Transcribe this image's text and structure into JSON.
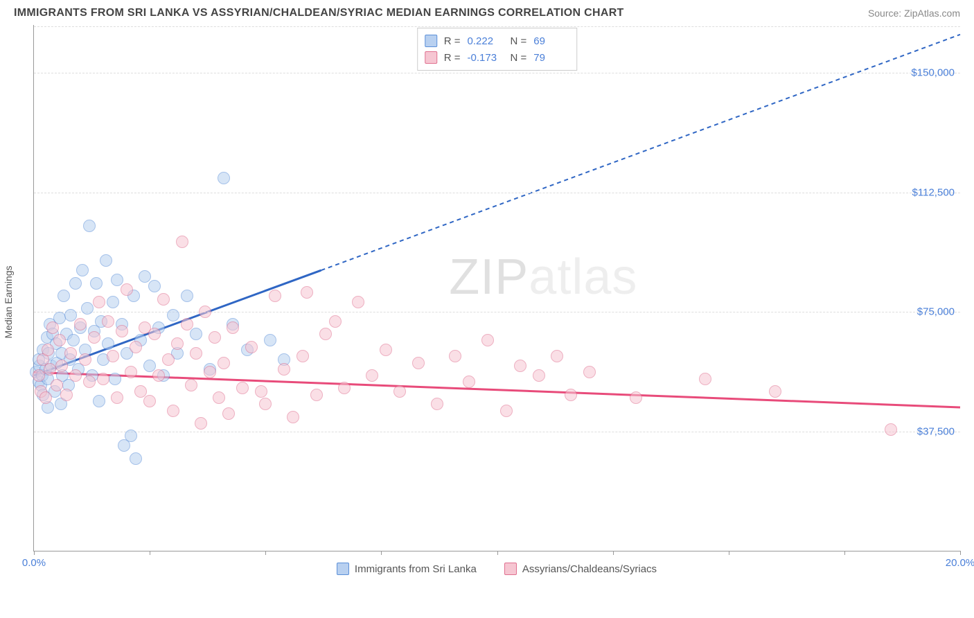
{
  "title": "IMMIGRANTS FROM SRI LANKA VS ASSYRIAN/CHALDEAN/SYRIAC MEDIAN EARNINGS CORRELATION CHART",
  "source": "Source: ZipAtlas.com",
  "ylabel": "Median Earnings",
  "watermark_a": "ZIP",
  "watermark_b": "atlas",
  "chart": {
    "type": "scatter",
    "background_color": "#ffffff",
    "grid_color": "#dddddd",
    "axis_color": "#999999",
    "tick_label_color": "#4a7fd8",
    "xlim": [
      0,
      20
    ],
    "ylim": [
      0,
      165000
    ],
    "xtick_positions": [
      0,
      2.5,
      5,
      7.5,
      10,
      12.5,
      15,
      17.5,
      20
    ],
    "xtick_labels": {
      "0": "0.0%",
      "20": "20.0%"
    },
    "ytick_positions": [
      37500,
      75000,
      112500,
      150000
    ],
    "ytick_labels": [
      "$37,500",
      "$75,000",
      "$112,500",
      "$150,000"
    ],
    "marker_radius": 9,
    "marker_opacity": 0.55,
    "trend_line_width": 3,
    "trend_dash": "6,5"
  },
  "series": [
    {
      "name": "Immigrants from Sri Lanka",
      "color_fill": "#b8d0f0",
      "color_stroke": "#5b8fd8",
      "trend_color": "#2f66c4",
      "R_label": "R =",
      "R": "0.222",
      "N_label": "N =",
      "N": "69",
      "trend": {
        "x1": 0,
        "y1": 55000,
        "x2": 6.2,
        "y2": 88000,
        "x2_ext": 20,
        "y2_ext": 162000
      },
      "points": [
        [
          0.05,
          56000
        ],
        [
          0.1,
          53000
        ],
        [
          0.12,
          58000
        ],
        [
          0.1,
          60000
        ],
        [
          0.15,
          52000
        ],
        [
          0.18,
          55000
        ],
        [
          0.2,
          63000
        ],
        [
          0.2,
          49000
        ],
        [
          0.25,
          57000
        ],
        [
          0.28,
          67000
        ],
        [
          0.3,
          54000
        ],
        [
          0.3,
          45000
        ],
        [
          0.32,
          62000
        ],
        [
          0.35,
          71000
        ],
        [
          0.38,
          58000
        ],
        [
          0.4,
          68000
        ],
        [
          0.45,
          50000
        ],
        [
          0.48,
          65000
        ],
        [
          0.5,
          59000
        ],
        [
          0.55,
          73000
        ],
        [
          0.58,
          46000
        ],
        [
          0.6,
          62000
        ],
        [
          0.62,
          55000
        ],
        [
          0.65,
          80000
        ],
        [
          0.7,
          68000
        ],
        [
          0.75,
          52000
        ],
        [
          0.78,
          60000
        ],
        [
          0.8,
          74000
        ],
        [
          0.85,
          66000
        ],
        [
          0.9,
          84000
        ],
        [
          0.95,
          57000
        ],
        [
          1.0,
          70000
        ],
        [
          1.05,
          88000
        ],
        [
          1.1,
          63000
        ],
        [
          1.15,
          76000
        ],
        [
          1.2,
          102000
        ],
        [
          1.25,
          55000
        ],
        [
          1.3,
          69000
        ],
        [
          1.35,
          84000
        ],
        [
          1.4,
          47000
        ],
        [
          1.45,
          72000
        ],
        [
          1.5,
          60000
        ],
        [
          1.55,
          91000
        ],
        [
          1.6,
          65000
        ],
        [
          1.7,
          78000
        ],
        [
          1.75,
          54000
        ],
        [
          1.8,
          85000
        ],
        [
          1.9,
          71000
        ],
        [
          1.95,
          33000
        ],
        [
          2.0,
          62000
        ],
        [
          2.1,
          36000
        ],
        [
          2.15,
          80000
        ],
        [
          2.2,
          29000
        ],
        [
          2.3,
          66000
        ],
        [
          2.4,
          86000
        ],
        [
          2.5,
          58000
        ],
        [
          2.6,
          83000
        ],
        [
          2.7,
          70000
        ],
        [
          2.8,
          55000
        ],
        [
          3.0,
          74000
        ],
        [
          3.1,
          62000
        ],
        [
          3.3,
          80000
        ],
        [
          3.5,
          68000
        ],
        [
          3.8,
          57000
        ],
        [
          4.1,
          117000
        ],
        [
          4.3,
          71000
        ],
        [
          4.6,
          63000
        ],
        [
          5.1,
          66000
        ],
        [
          5.4,
          60000
        ]
      ]
    },
    {
      "name": "Assyrians/Chaldeans/Syriacs",
      "color_fill": "#f6c6d2",
      "color_stroke": "#e06f8f",
      "trend_color": "#e84b7a",
      "R_label": "R =",
      "R": "-0.173",
      "N_label": "N =",
      "N": "79",
      "trend": {
        "x1": 0,
        "y1": 56000,
        "x2": 20,
        "y2": 45000,
        "x2_ext": 20,
        "y2_ext": 45000
      },
      "points": [
        [
          0.1,
          55000
        ],
        [
          0.15,
          50000
        ],
        [
          0.2,
          60000
        ],
        [
          0.25,
          48000
        ],
        [
          0.3,
          63000
        ],
        [
          0.35,
          57000
        ],
        [
          0.4,
          70000
        ],
        [
          0.5,
          52000
        ],
        [
          0.55,
          66000
        ],
        [
          0.6,
          58000
        ],
        [
          0.7,
          49000
        ],
        [
          0.8,
          62000
        ],
        [
          0.9,
          55000
        ],
        [
          1.0,
          71000
        ],
        [
          1.1,
          60000
        ],
        [
          1.2,
          53000
        ],
        [
          1.3,
          67000
        ],
        [
          1.4,
          78000
        ],
        [
          1.5,
          54000
        ],
        [
          1.6,
          72000
        ],
        [
          1.7,
          61000
        ],
        [
          1.8,
          48000
        ],
        [
          1.9,
          69000
        ],
        [
          2.0,
          82000
        ],
        [
          2.1,
          56000
        ],
        [
          2.2,
          64000
        ],
        [
          2.3,
          50000
        ],
        [
          2.4,
          70000
        ],
        [
          2.5,
          47000
        ],
        [
          2.6,
          68000
        ],
        [
          2.7,
          55000
        ],
        [
          2.8,
          79000
        ],
        [
          2.9,
          60000
        ],
        [
          3.0,
          44000
        ],
        [
          3.1,
          65000
        ],
        [
          3.2,
          97000
        ],
        [
          3.3,
          71000
        ],
        [
          3.4,
          52000
        ],
        [
          3.5,
          62000
        ],
        [
          3.6,
          40000
        ],
        [
          3.7,
          75000
        ],
        [
          3.8,
          56000
        ],
        [
          3.9,
          67000
        ],
        [
          4.0,
          48000
        ],
        [
          4.1,
          59000
        ],
        [
          4.2,
          43000
        ],
        [
          4.3,
          70000
        ],
        [
          4.5,
          51000
        ],
        [
          4.7,
          64000
        ],
        [
          4.9,
          50000
        ],
        [
          5.0,
          46000
        ],
        [
          5.2,
          80000
        ],
        [
          5.4,
          57000
        ],
        [
          5.6,
          42000
        ],
        [
          5.8,
          61000
        ],
        [
          5.9,
          81000
        ],
        [
          6.1,
          49000
        ],
        [
          6.3,
          68000
        ],
        [
          6.5,
          72000
        ],
        [
          6.7,
          51000
        ],
        [
          7.0,
          78000
        ],
        [
          7.3,
          55000
        ],
        [
          7.6,
          63000
        ],
        [
          7.9,
          50000
        ],
        [
          8.3,
          59000
        ],
        [
          8.7,
          46000
        ],
        [
          9.1,
          61000
        ],
        [
          9.4,
          53000
        ],
        [
          9.8,
          66000
        ],
        [
          10.2,
          44000
        ],
        [
          10.5,
          58000
        ],
        [
          10.9,
          55000
        ],
        [
          11.3,
          61000
        ],
        [
          11.6,
          49000
        ],
        [
          12.0,
          56000
        ],
        [
          13.0,
          48000
        ],
        [
          14.5,
          54000
        ],
        [
          16.0,
          50000
        ],
        [
          18.5,
          38000
        ]
      ]
    }
  ],
  "bottom_legend": [
    {
      "label": "Immigrants from Sri Lanka",
      "fill": "#b8d0f0",
      "stroke": "#5b8fd8"
    },
    {
      "label": "Assyrians/Chaldeans/Syriacs",
      "fill": "#f6c6d2",
      "stroke": "#e06f8f"
    }
  ]
}
